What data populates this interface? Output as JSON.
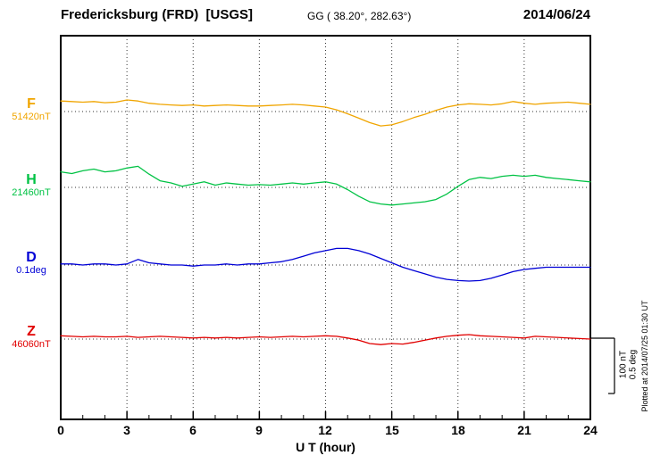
{
  "header": {
    "station": "Fredericksburg (FRD)  [USGS]",
    "coords": "GG ( 38.20°, 282.63°)",
    "date": "2014/06/24"
  },
  "axis": {
    "xlabel": "U T (hour)",
    "tick_labels": [
      "0",
      "3",
      "6",
      "9",
      "12",
      "15",
      "18",
      "21",
      "24"
    ]
  },
  "traces": [
    {
      "letter": "F",
      "baseline": "51420nT"
    },
    {
      "letter": "H",
      "baseline": "21460nT"
    },
    {
      "letter": "D",
      "baseline": "0.1deg"
    },
    {
      "letter": "Z",
      "baseline": "46060nT"
    }
  ],
  "scale_bar": {
    "nt_label": "100 nT",
    "deg_label": "0.5 deg"
  },
  "footer": {
    "plotted_at": "Plotted at 2014/07/25 01:30 UT"
  },
  "chart_data": {
    "type": "line",
    "title": "Fredericksburg (FRD) [USGS] magnetogram 2014/06/24",
    "xlabel": "U T (hour)",
    "x_range": [
      0,
      24
    ],
    "x_step": 0.5,
    "x_ticks": [
      0,
      3,
      6,
      9,
      12,
      15,
      18,
      21,
      24
    ],
    "x_gridlines": [
      3,
      6,
      9,
      12,
      15,
      18,
      21
    ],
    "grid": "dotted",
    "value_kind": "deviation_from_baseline",
    "scale_reference": {
      "nT_per_division": 100,
      "deg_per_division": 0.5
    },
    "series": [
      {
        "name": "F",
        "units": "nT",
        "baseline_value": 51420,
        "baseline_label": "51420nT",
        "color": "#f0a500",
        "values": [
          19,
          18,
          17,
          18,
          16,
          17,
          21,
          19,
          15,
          13,
          12,
          11,
          12,
          10,
          11,
          12,
          11,
          10,
          10,
          11,
          12,
          13,
          12,
          10,
          8,
          3,
          -4,
          -12,
          -20,
          -26,
          -24,
          -18,
          -11,
          -5,
          2,
          8,
          12,
          14,
          13,
          12,
          14,
          18,
          15,
          13,
          15,
          16,
          17,
          15,
          13
        ]
      },
      {
        "name": "H",
        "units": "nT",
        "baseline_value": 21460,
        "baseline_label": "21460nT",
        "color": "#00c244",
        "values": [
          28,
          25,
          30,
          33,
          28,
          30,
          35,
          38,
          24,
          12,
          8,
          2,
          6,
          10,
          4,
          8,
          6,
          4,
          5,
          4,
          6,
          8,
          6,
          8,
          10,
          6,
          -4,
          -16,
          -26,
          -30,
          -32,
          -30,
          -28,
          -26,
          -22,
          -12,
          2,
          14,
          18,
          16,
          20,
          22,
          20,
          22,
          18,
          16,
          14,
          12,
          10
        ]
      },
      {
        "name": "D",
        "units": "deg",
        "baseline_value": 0.1,
        "baseline_label": "0.1deg",
        "color": "#0000d6",
        "values": [
          0.01,
          0.01,
          0.0,
          0.01,
          0.01,
          0.0,
          0.01,
          0.05,
          0.02,
          0.01,
          0.0,
          0.0,
          -0.01,
          0.0,
          0.0,
          0.01,
          0.0,
          0.01,
          0.01,
          0.02,
          0.03,
          0.05,
          0.08,
          0.11,
          0.13,
          0.15,
          0.15,
          0.13,
          0.1,
          0.06,
          0.02,
          -0.02,
          -0.05,
          -0.08,
          -0.11,
          -0.13,
          -0.14,
          -0.145,
          -0.14,
          -0.12,
          -0.09,
          -0.06,
          -0.04,
          -0.03,
          -0.02,
          -0.02,
          -0.02,
          -0.02,
          -0.02
        ]
      },
      {
        "name": "Z",
        "units": "nT",
        "baseline_value": 46060,
        "baseline_label": "46060nT",
        "color": "#e10000",
        "values": [
          6,
          5,
          4,
          5,
          4,
          4,
          5,
          3,
          4,
          5,
          4,
          3,
          2,
          3,
          2,
          3,
          2,
          3,
          4,
          3,
          4,
          5,
          4,
          5,
          6,
          5,
          2,
          -2,
          -8,
          -10,
          -8,
          -9,
          -6,
          -2,
          2,
          5,
          7,
          8,
          6,
          5,
          4,
          3,
          2,
          5,
          4,
          3,
          2,
          1,
          0
        ]
      }
    ]
  }
}
